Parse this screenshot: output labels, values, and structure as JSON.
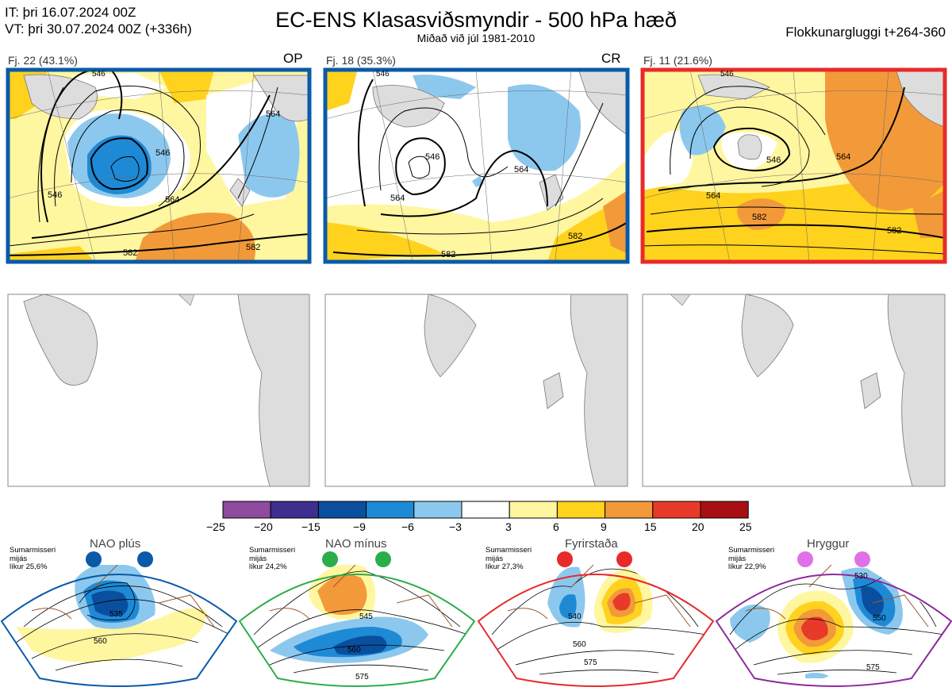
{
  "header": {
    "init_time": "IT: þri 16.07.2024 00Z",
    "valid_time": "VT: þri 30.07.2024 00Z  (+336h)",
    "title": "EC-ENS Klasasviðsmyndir - 500 hPa hæð",
    "subtitle": "Miðað við júl 1981-2010",
    "window": "Flokkunargluggi t+264-360"
  },
  "clusters": [
    {
      "label": "Fj. 22 (43.1%)",
      "tag": "OP",
      "border_color": "#0a5aa8",
      "contour_labels": [
        "546",
        "564",
        "582",
        "582",
        "564",
        "546",
        "546"
      ]
    },
    {
      "label": "Fj. 18 (35.3%)",
      "tag": "CR",
      "border_color": "#0a5aa8",
      "contour_labels": [
        "546",
        "564",
        "564",
        "582",
        "582",
        "546"
      ]
    },
    {
      "label": "Fj. 11 (21.6%)",
      "tag": "",
      "border_color": "#e82a2a",
      "contour_labels": [
        "546",
        "564",
        "564",
        "582",
        "582",
        "546"
      ]
    }
  ],
  "colorbar": {
    "ticks": [
      "−25",
      "−20",
      "−15",
      "−9",
      "−6",
      "−3",
      "3",
      "6",
      "9",
      "15",
      "20",
      "25"
    ],
    "colors": [
      "#8e4a9e",
      "#3e2f8f",
      "#0a4f9e",
      "#1e8ad6",
      "#8cc8ee",
      "#ffffff",
      "#fff6a0",
      "#ffd21e",
      "#f29a3a",
      "#e83a2a",
      "#a80f14"
    ]
  },
  "climate_regimes": [
    {
      "name": "NAO plús",
      "note": [
        "Sumarmisseri",
        "mijás",
        "líkur 25,6%"
      ],
      "color": "#0a5aa8",
      "labels": [
        "535",
        "560"
      ]
    },
    {
      "name": "NAO mínus",
      "note": [
        "Sumarmisseri",
        "mijás",
        "líkur 24,2%"
      ],
      "color": "#2aae4a",
      "labels": [
        "545",
        "560",
        "575"
      ]
    },
    {
      "name": "Fyrirstaða",
      "note": [
        "Sumarmisseri",
        "mijás",
        "líkur 27,3%"
      ],
      "color": "#e82a2a",
      "labels": [
        "540",
        "560",
        "575"
      ]
    },
    {
      "name": "Hryggur",
      "note": [
        "Sumarmisseri",
        "mijás",
        "líkur 22,9%"
      ],
      "color": "#e070e8",
      "labels": [
        "530",
        "550",
        "575"
      ]
    }
  ]
}
